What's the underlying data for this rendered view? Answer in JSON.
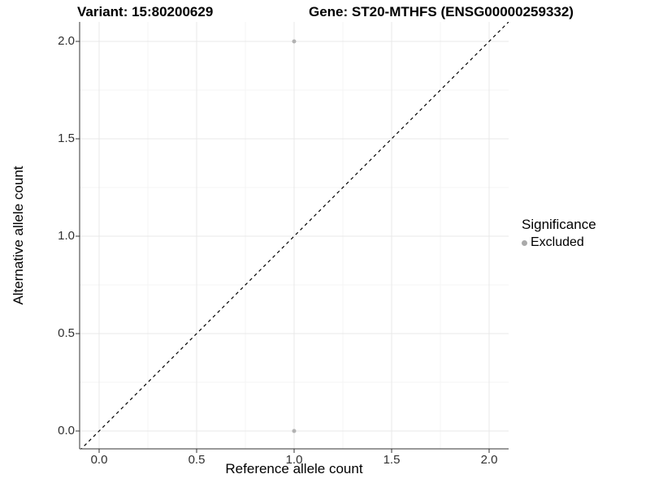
{
  "chart_data": {
    "type": "scatter",
    "title_variant": "Variant: 15:80200629",
    "title_gene": "Gene: ST20-MTHFS (ENSG00000259332)",
    "xlabel": "Reference allele count",
    "ylabel": "Alternative allele count",
    "xlim": [
      -0.1,
      2.1
    ],
    "ylim": [
      -0.1,
      2.1
    ],
    "x_ticks": [
      "0.0",
      "0.5",
      "1.0",
      "1.5",
      "2.0"
    ],
    "y_ticks": [
      "0.0",
      "0.5",
      "1.0",
      "1.5",
      "2.0"
    ],
    "x_tick_values": [
      0,
      0.5,
      1,
      1.5,
      2
    ],
    "y_tick_values": [
      0,
      0.5,
      1,
      1.5,
      2
    ],
    "x_minor_values": [
      0.25,
      0.75,
      1.25,
      1.75
    ],
    "y_minor_values": [
      0.25,
      0.75,
      1.25,
      1.75
    ],
    "grid": true,
    "points": [
      {
        "x": 1.0,
        "y": 2.0,
        "significance": "Excluded"
      },
      {
        "x": 1.0,
        "y": 0.0,
        "significance": "Excluded"
      }
    ],
    "identity_line": {
      "style": "dashed",
      "from": [
        -0.1,
        -0.1
      ],
      "to": [
        2.1,
        2.1
      ],
      "color": "#000000"
    },
    "legend": {
      "position": "right",
      "title": "Significance",
      "items": [
        {
          "label": "Excluded",
          "color": "#aaaaaa"
        }
      ]
    },
    "colors": {
      "point": "#b2b2b2",
      "grid_major": "#e8e8e8",
      "grid_minor": "#f4f4f4",
      "axis_line": "#333333",
      "tick_label": "#303030"
    }
  }
}
